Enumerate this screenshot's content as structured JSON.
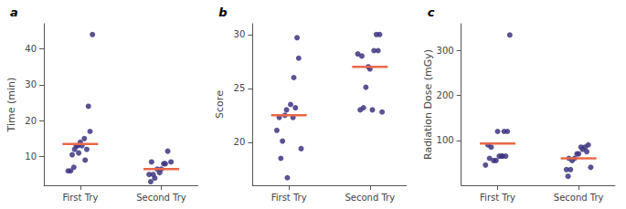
{
  "chart_data": [
    {
      "type": "scatter",
      "title": "a",
      "ylabel": "Time (min)",
      "xlim": [
        0.55,
        2.45
      ],
      "xticks": [
        {
          "value": 1,
          "label": "First Try"
        },
        {
          "value": 2,
          "label": "Second Try"
        }
      ],
      "ylim": [
        2,
        47
      ],
      "yticks": [
        10,
        20,
        30,
        40
      ],
      "grid": false,
      "series": [
        {
          "type": "scatter",
          "color": "#3d3580",
          "x": [
            0.88,
            0.92,
            1.0,
            1.05,
            0.95,
            0.93,
            1.08,
            0.98,
            0.85,
            1.1,
            1.15,
            1.02,
            1.12,
            0.97,
            0.9,
            1.06
          ],
          "values": [
            6,
            7,
            14,
            15,
            13,
            12,
            12,
            11,
            6,
            24,
            44,
            13,
            17,
            13,
            10.5,
            9
          ]
        },
        {
          "type": "scatter",
          "color": "#3d3580",
          "x": [
            1.88,
            1.92,
            1.95,
            2.0,
            1.98,
            1.85,
            2.05,
            1.9,
            1.87,
            2.08,
            2.12,
            2.03
          ],
          "values": [
            8.5,
            4,
            6.5,
            6.5,
            5.5,
            5,
            8,
            5,
            3,
            11.5,
            8.5,
            8
          ]
        },
        {
          "type": "line",
          "color": "#e8694a",
          "x": [
            0.78,
            1.22
          ],
          "values": [
            13.5,
            13.5
          ]
        },
        {
          "type": "line",
          "color": "#e8694a",
          "x": [
            1.78,
            2.22
          ],
          "values": [
            6.5,
            6.5
          ]
        }
      ]
    },
    {
      "type": "scatter",
      "title": "b",
      "ylabel": "Score",
      "xlim": [
        0.55,
        2.45
      ],
      "xticks": [
        {
          "value": 1,
          "label": "First Try"
        },
        {
          "value": 2,
          "label": "Second Try"
        }
      ],
      "ylim": [
        16,
        31
      ],
      "yticks": [
        20,
        25,
        30
      ],
      "grid": false,
      "series": [
        {
          "type": "scatter",
          "color": "#3d3580",
          "x": [
            0.88,
            0.92,
            0.97,
            1.05,
            0.95,
            1.08,
            1.12,
            0.85,
            1.02,
            1.1,
            0.9,
            0.98,
            1.15,
            1.06
          ],
          "values": [
            22.3,
            20.1,
            23.0,
            22.3,
            22.5,
            23.2,
            27.8,
            21.1,
            23.5,
            29.7,
            18.5,
            16.7,
            19.4,
            26.0
          ]
        },
        {
          "type": "scatter",
          "color": "#3d3580",
          "x": [
            1.88,
            1.95,
            1.85,
            1.9,
            2.0,
            1.98,
            2.05,
            2.1,
            2.12,
            2.08,
            2.03,
            1.92,
            2.15
          ],
          "values": [
            23.0,
            25.1,
            28.2,
            28.0,
            26.8,
            27.0,
            28.5,
            28.5,
            30.0,
            30.0,
            23.0,
            23.2,
            22.8
          ]
        },
        {
          "type": "line",
          "color": "#e8694a",
          "x": [
            0.78,
            1.22
          ],
          "values": [
            22.5,
            22.5
          ]
        },
        {
          "type": "line",
          "color": "#e8694a",
          "x": [
            1.78,
            2.22
          ],
          "values": [
            27.0,
            27.0
          ]
        }
      ]
    },
    {
      "type": "scatter",
      "title": "c",
      "ylabel": "Radiation Dose (mGy)",
      "xlim": [
        0.55,
        2.45
      ],
      "xticks": [
        {
          "value": 1,
          "label": "First Try"
        },
        {
          "value": 2,
          "label": "Second Try"
        }
      ],
      "ylim": [
        0,
        360
      ],
      "yticks": [
        100,
        200,
        300
      ],
      "grid": false,
      "series": [
        {
          "type": "scatter",
          "color": "#3d3580",
          "x": [
            0.88,
            0.92,
            1.0,
            1.05,
            0.95,
            0.98,
            1.08,
            1.02,
            1.12,
            0.85,
            0.9,
            1.06,
            1.1,
            1.15
          ],
          "values": [
            90,
            85,
            120,
            65,
            55,
            55,
            120,
            65,
            120,
            45,
            60,
            65,
            65,
            335
          ]
        },
        {
          "type": "scatter",
          "color": "#3d3580",
          "x": [
            1.88,
            1.95,
            1.85,
            1.9,
            1.87,
            2.0,
            2.05,
            1.98,
            2.1,
            2.03,
            2.08,
            2.12,
            1.92,
            2.15
          ],
          "values": [
            60,
            60,
            35,
            35,
            20,
            70,
            80,
            70,
            75,
            85,
            85,
            90,
            55,
            40
          ]
        },
        {
          "type": "line",
          "color": "#e8694a",
          "x": [
            0.78,
            1.22
          ],
          "values": [
            93,
            93
          ]
        },
        {
          "type": "line",
          "color": "#e8694a",
          "x": [
            1.78,
            2.22
          ],
          "values": [
            60,
            60
          ]
        }
      ]
    }
  ]
}
